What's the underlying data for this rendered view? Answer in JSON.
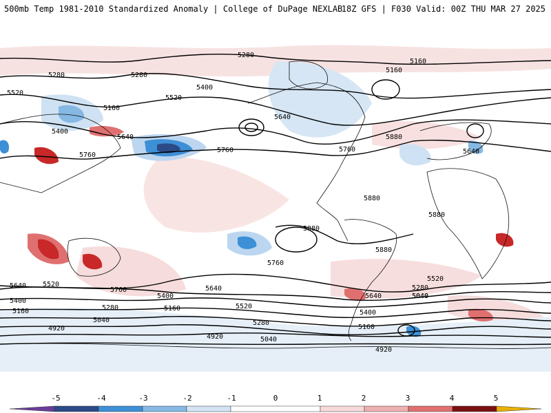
{
  "header": {
    "title_left": "500mb Temp 1981-2010 Standardized Anomaly | College of DuPage NEXLAB",
    "title_right": "18Z GFS | F030 Valid: 00Z THU MAR 27 2025"
  },
  "colors": {
    "neg5": "#6a3d9a",
    "neg4": "#2b4a86",
    "neg3": "#3d8fd6",
    "neg2": "#86b8e4",
    "neg1": "#d2e4f4",
    "zero": "#ffffff",
    "pos1": "#f7d9d9",
    "pos2": "#eeb0b0",
    "pos3": "#e07070",
    "pos4": "#c82828",
    "pos5": "#7a1010",
    "pos_over": "#e8b000",
    "contour": "#000000",
    "coastline": "#111111"
  },
  "colorbar": {
    "ticks": [
      "-5",
      "-4",
      "-3",
      "-2",
      "-1",
      "0",
      "1",
      "2",
      "3",
      "4",
      "5"
    ]
  },
  "contour_labels": {
    "c5280_a": "5280",
    "c5280_b": "5280",
    "c5280_c": "5280",
    "c5160_a": "5160",
    "c5160_b": "5160",
    "c5160_c": "5160",
    "c5520_a": "5520",
    "c5520_b": "5520",
    "c5400_a": "5400",
    "c5400_b": "5400",
    "c5640_a": "5640",
    "c5640_b": "5640",
    "c5640_c": "5640",
    "c5760_a": "5760",
    "c5760_b": "5760",
    "c5760_c": "5760",
    "c5880_a": "5880",
    "c5880_b": "5880",
    "c5880_c": "5880",
    "c5880_d": "5880",
    "c5880_e": "5880",
    "s5640_a": "5640",
    "s5520_a": "5520",
    "s5760_a": "5760",
    "s5400_a": "5400",
    "s5160_a": "5160",
    "s5280_a": "5280",
    "s5040_a": "5040",
    "s4920_a": "4920",
    "s5640_b": "5640",
    "s5400_b": "5400",
    "s5280_b": "5280",
    "s5160_b": "5160",
    "s5520_b": "5520",
    "s5760_b": "5760",
    "s5280_c": "5280",
    "s5040_b": "5040",
    "s4920_b": "4920",
    "s5040_c": "5040",
    "s5160_c": "5160",
    "s4920_c": "4920",
    "s5400_c": "5400",
    "s5520_c": "5520",
    "s5640_c": "5640",
    "s5040_d": "5040",
    "s5280_d": "5280"
  }
}
